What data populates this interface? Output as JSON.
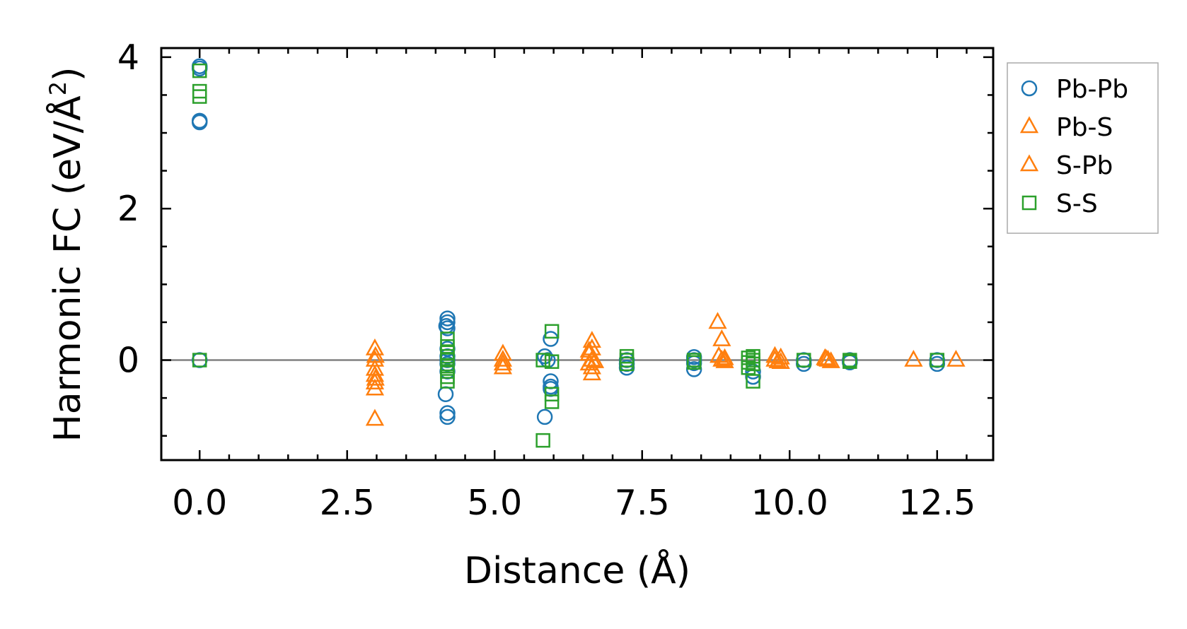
{
  "chart_data": {
    "type": "scatter",
    "xlabel": "Distance (Å)",
    "ylabel": "Harmonic FC (eV/Å²)",
    "ylabel_parts": {
      "main": "Harmonic FC (eV/Å",
      "sup": "2",
      "close": ")"
    },
    "xlim": [
      -0.65,
      13.45
    ],
    "ylim": [
      -1.32,
      4.12
    ],
    "xticks": [
      0.0,
      2.5,
      5.0,
      7.5,
      10.0,
      12.5
    ],
    "xtick_labels": [
      "0.0",
      "2.5",
      "5.0",
      "7.5",
      "10.0",
      "12.5"
    ],
    "yticks": [
      0,
      2,
      4
    ],
    "ytick_labels": [
      "0",
      "2",
      "4"
    ],
    "hline": 0,
    "legend_position": "outside right",
    "series": [
      {
        "name": "Pb-Pb",
        "marker": "circle",
        "color": "#1f77b4",
        "points": [
          [
            0,
            3.88
          ],
          [
            0,
            3.85
          ],
          [
            0,
            3.16
          ],
          [
            0,
            3.14
          ],
          [
            0,
            0
          ],
          [
            4.2,
            0.55
          ],
          [
            4.2,
            0.5
          ],
          [
            4.18,
            0.45
          ],
          [
            4.2,
            0.42
          ],
          [
            4.2,
            0.15
          ],
          [
            4.2,
            0.05
          ],
          [
            4.2,
            0
          ],
          [
            4.2,
            -0.05
          ],
          [
            4.2,
            -0.15
          ],
          [
            4.17,
            -0.45
          ],
          [
            4.2,
            -0.7
          ],
          [
            4.2,
            -0.75
          ],
          [
            5.85,
            0.05
          ],
          [
            5.9,
            0
          ],
          [
            5.95,
            0.28
          ],
          [
            5.95,
            -0.28
          ],
          [
            5.95,
            -0.35
          ],
          [
            5.95,
            -0.38
          ],
          [
            5.85,
            -0.75
          ],
          [
            7.24,
            0
          ],
          [
            7.24,
            -0.05
          ],
          [
            7.24,
            -0.1
          ],
          [
            8.38,
            0.04
          ],
          [
            8.38,
            0
          ],
          [
            8.38,
            -0.04
          ],
          [
            8.38,
            -0.12
          ],
          [
            9.38,
            -0.15
          ],
          [
            9.38,
            -0.22
          ],
          [
            10.24,
            0
          ],
          [
            10.24,
            -0.05
          ],
          [
            11.02,
            0
          ],
          [
            11.02,
            -0.03
          ],
          [
            12.5,
            0
          ],
          [
            12.5,
            -0.05
          ]
        ]
      },
      {
        "name": "Pb-S",
        "marker": "triangle",
        "color": "#ff7f0e",
        "points": [
          [
            2.97,
            0.15
          ],
          [
            2.97,
            0
          ],
          [
            2.97,
            -0.12
          ],
          [
            2.97,
            -0.2
          ],
          [
            2.97,
            -0.3
          ],
          [
            2.97,
            -0.38
          ],
          [
            2.97,
            -0.78
          ],
          [
            5.14,
            0.08
          ],
          [
            5.14,
            0
          ],
          [
            5.14,
            -0.05
          ],
          [
            5.14,
            -0.1
          ],
          [
            6.65,
            0.25
          ],
          [
            6.65,
            0.15
          ],
          [
            6.6,
            0.08
          ],
          [
            6.65,
            0
          ],
          [
            6.6,
            -0.05
          ],
          [
            6.65,
            -0.1
          ],
          [
            6.65,
            -0.18
          ],
          [
            8.78,
            0.5
          ],
          [
            8.85,
            0.27
          ],
          [
            8.8,
            0.05
          ],
          [
            8.85,
            0
          ],
          [
            8.9,
            -0.02
          ],
          [
            9.75,
            0.05
          ],
          [
            9.75,
            0
          ],
          [
            9.85,
            0.03
          ],
          [
            9.85,
            -0.03
          ],
          [
            10.6,
            0.02
          ],
          [
            10.65,
            0
          ],
          [
            10.7,
            -0.02
          ],
          [
            12.1,
            0
          ],
          [
            12.82,
            0
          ]
        ]
      },
      {
        "name": "S-Pb",
        "marker": "triangle",
        "color": "#ff7f0e",
        "points": [
          [
            2.98,
            0.05
          ],
          [
            2.98,
            -0.25
          ],
          [
            6.6,
            0.12
          ],
          [
            6.7,
            -0.02
          ],
          [
            8.9,
            0.02
          ],
          [
            9.8,
            -0.02
          ],
          [
            10.62,
            0.01
          ]
        ]
      },
      {
        "name": "S-S",
        "marker": "square",
        "color": "#2ca02c",
        "points": [
          [
            0,
            3.82
          ],
          [
            0,
            3.55
          ],
          [
            0,
            3.48
          ],
          [
            0,
            0
          ],
          [
            4.2,
            0.28
          ],
          [
            4.2,
            0.18
          ],
          [
            4.2,
            0.1
          ],
          [
            4.2,
            0.05
          ],
          [
            4.2,
            0
          ],
          [
            4.2,
            -0.08
          ],
          [
            4.2,
            -0.15
          ],
          [
            4.2,
            -0.22
          ],
          [
            4.2,
            -0.28
          ],
          [
            5.82,
            0
          ],
          [
            5.97,
            0.38
          ],
          [
            5.97,
            -0.02
          ],
          [
            5.97,
            -0.45
          ],
          [
            5.97,
            -0.55
          ],
          [
            5.82,
            -1.06
          ],
          [
            7.24,
            0.05
          ],
          [
            7.24,
            0
          ],
          [
            7.24,
            -0.05
          ],
          [
            8.38,
            0
          ],
          [
            8.38,
            -0.03
          ],
          [
            9.3,
            0.03
          ],
          [
            9.3,
            -0.03
          ],
          [
            9.3,
            -0.1
          ],
          [
            9.38,
            0.05
          ],
          [
            9.38,
            0
          ],
          [
            9.38,
            -0.05
          ],
          [
            9.38,
            -0.28
          ],
          [
            10.24,
            0
          ],
          [
            11.02,
            0
          ],
          [
            11.02,
            -0.02
          ],
          [
            12.5,
            0
          ]
        ]
      }
    ]
  }
}
